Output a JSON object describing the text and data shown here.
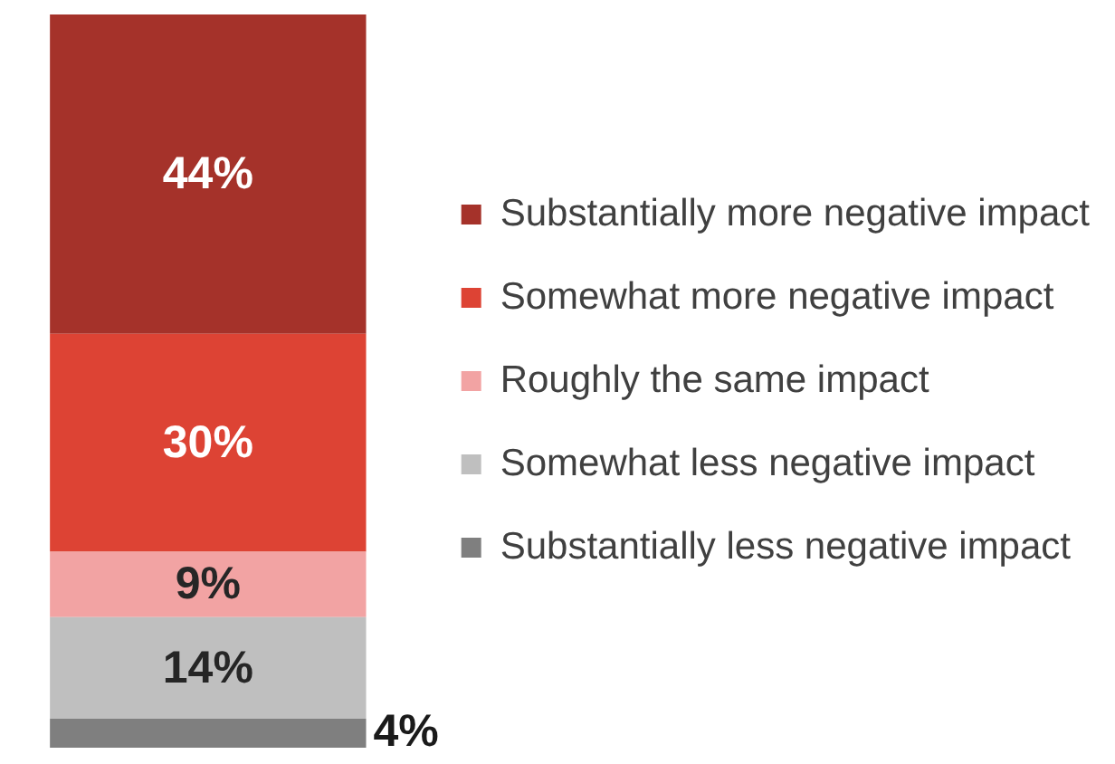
{
  "chart_data": {
    "type": "bar",
    "stacked": true,
    "categories": [
      null
    ],
    "series": [
      {
        "name": "Substantially less negative impact",
        "color": "#7f7f7f",
        "values": [
          4
        ],
        "value_labels": [
          "4%"
        ]
      },
      {
        "name": "Somewhat less negative impact",
        "color": "#bfbfbf",
        "values": [
          14
        ],
        "value_labels": [
          "14%"
        ]
      },
      {
        "name": "Roughly the same impact",
        "color": "#f2a3a3",
        "values": [
          9
        ],
        "value_labels": [
          "9%"
        ]
      },
      {
        "name": "Somewhat more negative impact",
        "color": "#dd4334",
        "values": [
          30
        ],
        "value_labels": [
          "30%"
        ]
      },
      {
        "name": "Substantially more negative impact",
        "color": "#a5322a",
        "values": [
          44
        ],
        "value_labels": [
          "44%"
        ]
      }
    ],
    "legend": "right",
    "tick_labels": false
  }
}
